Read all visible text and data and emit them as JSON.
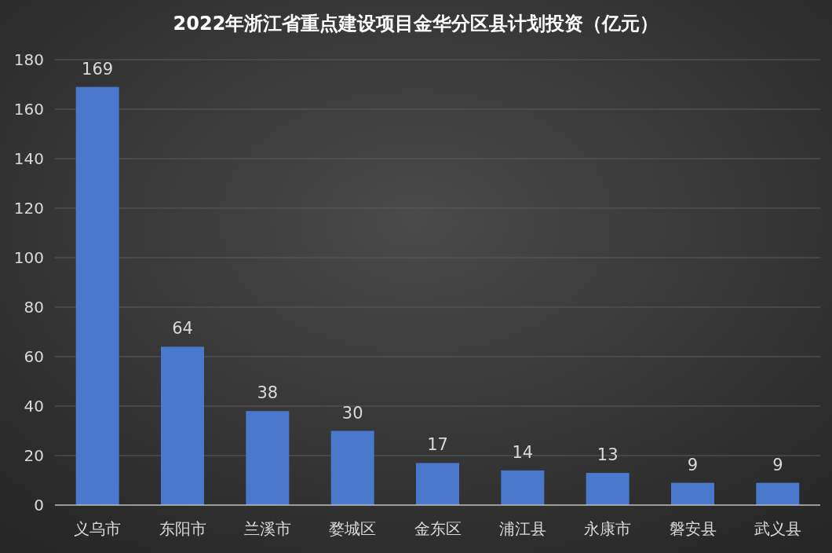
{
  "chart_data": {
    "type": "bar",
    "title": "2022年浙江省重点建设项目金华分区县计划投资（亿元）",
    "categories": [
      "义乌市",
      "东阳市",
      "兰溪市",
      "婺城区",
      "金东区",
      "浦江县",
      "永康市",
      "磐安县",
      "武义县"
    ],
    "values": [
      169,
      64,
      38,
      30,
      17,
      14,
      13,
      9,
      9
    ],
    "color": "#4a78cc",
    "ylim": [
      0,
      180
    ],
    "yticks": [
      0,
      20,
      40,
      60,
      80,
      100,
      120,
      140,
      160,
      180
    ],
    "grid": "y",
    "data_labels": true
  }
}
